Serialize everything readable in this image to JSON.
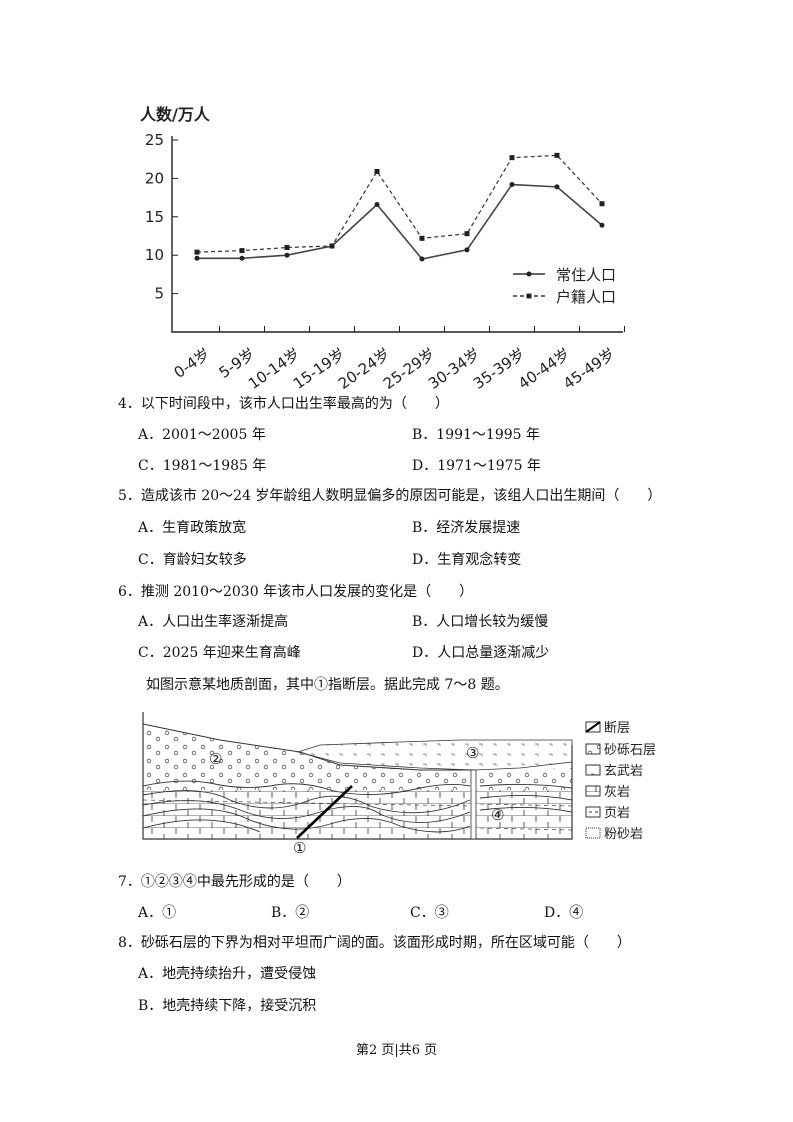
{
  "chart_data": {
    "type": "line",
    "ylabel": "人数/万人",
    "ylim": [
      0,
      25
    ],
    "yticks": [
      5,
      10,
      15,
      20,
      25
    ],
    "categories": [
      "0-4岁",
      "5-9岁",
      "10-14岁",
      "15-19岁",
      "20-24岁",
      "25-29岁",
      "30-34岁",
      "35-39岁",
      "40-44岁",
      "45-49岁"
    ],
    "series": [
      {
        "name": "常住人口",
        "style": "solid",
        "values": [
          9.6,
          9.6,
          10.0,
          11.2,
          16.6,
          9.5,
          10.7,
          19.2,
          18.9,
          13.9
        ]
      },
      {
        "name": "户籍人口",
        "style": "dashed",
        "values": [
          10.4,
          10.6,
          11.0,
          11.2,
          20.9,
          12.2,
          12.8,
          22.7,
          23.0,
          16.7
        ]
      }
    ],
    "legend_position": "right",
    "grid": false
  },
  "questions": [
    {
      "stem": "4．以下时间段中，该市人口出生率最高的为（　　）",
      "options": [
        "A．2001～2005 年",
        "B．1991～1995 年",
        "C．1981～1985 年",
        "D．1971～1975 年"
      ]
    },
    {
      "stem": "5．造成该市 20～24 岁年龄组人数明显偏多的原因可能是，该组人口出生期间（　　）",
      "options": [
        "A．生育政策放宽",
        "B．经济发展提速",
        "C．育龄妇女较多",
        "D．生育观念转变"
      ]
    },
    {
      "stem": "6．推测 2010～2030 年该市人口发展的变化是（　　）",
      "options": [
        "A．人口出生率逐渐提高",
        "B．人口增长较为缓慢",
        "C．2025 年迎来生育高峰",
        "D．人口总量逐渐减少"
      ]
    }
  ],
  "intro": "如图示意某地质剖面，其中①指断层。据此完成 7～8 题。",
  "diagram": {
    "labels": [
      "①",
      "②",
      "③",
      "④"
    ],
    "legend": [
      "断层",
      "砂砾石层",
      "玄武岩",
      "灰岩",
      "页岩",
      "粉砂岩"
    ]
  },
  "questions2": [
    {
      "stem": "7．①②③④中最先形成的是（　　）",
      "options": [
        "A．①",
        "B．②",
        "C．③",
        "D．④"
      ]
    },
    {
      "stem": "8．砂砾石层的下界为相对平坦而广阔的面。该面形成时期，所在区域可能（　　）",
      "options": [
        "A．地壳持续抬升，遭受侵蚀",
        "B．地壳持续下降，接受沉积"
      ]
    }
  ],
  "footer": "第2 页|共6 页"
}
